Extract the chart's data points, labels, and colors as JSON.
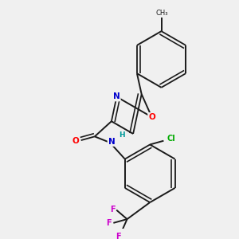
{
  "bg_color": "#f0f0f0",
  "bond_color": "#1a1a1a",
  "colors": {
    "O": "#ff0000",
    "N": "#0000cc",
    "Cl": "#00aa00",
    "F": "#cc00cc",
    "H": "#009999",
    "C": "#1a1a1a"
  },
  "figsize": [
    3.0,
    3.0
  ],
  "dpi": 100
}
